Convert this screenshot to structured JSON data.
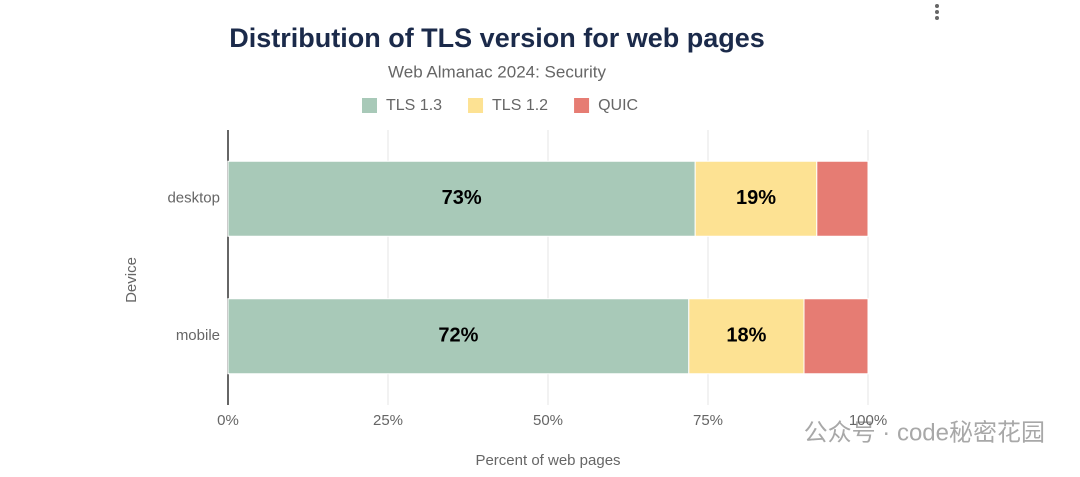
{
  "chart_data": {
    "type": "stacked-bar-horizontal",
    "title": "Distribution of TLS version for web pages",
    "subtitle": "Web Almanac 2024: Security",
    "x_label": "Percent of web pages",
    "y_label": "Device",
    "categories": [
      "desktop",
      "mobile"
    ],
    "series": [
      {
        "name": "TLS 1.3",
        "color": "#a8c9b8",
        "values": [
          73,
          72
        ],
        "value_labels": [
          "73%",
          "72%"
        ]
      },
      {
        "name": "TLS 1.2",
        "color": "#fde293",
        "values": [
          19,
          18
        ],
        "value_labels": [
          "19%",
          "18%"
        ]
      },
      {
        "name": "QUIC",
        "color": "#e67c73",
        "values": [
          8,
          10
        ]
      }
    ],
    "xlim": [
      0,
      100
    ],
    "xticks": [
      {
        "value": 0,
        "label": "0%"
      },
      {
        "value": 25,
        "label": "25%"
      },
      {
        "value": 50,
        "label": "50%"
      },
      {
        "value": 75,
        "label": "75%"
      },
      {
        "value": 100,
        "label": "100%"
      }
    ],
    "grid": true,
    "legend": "top",
    "watermark": "公众号 · code秘密花园"
  }
}
